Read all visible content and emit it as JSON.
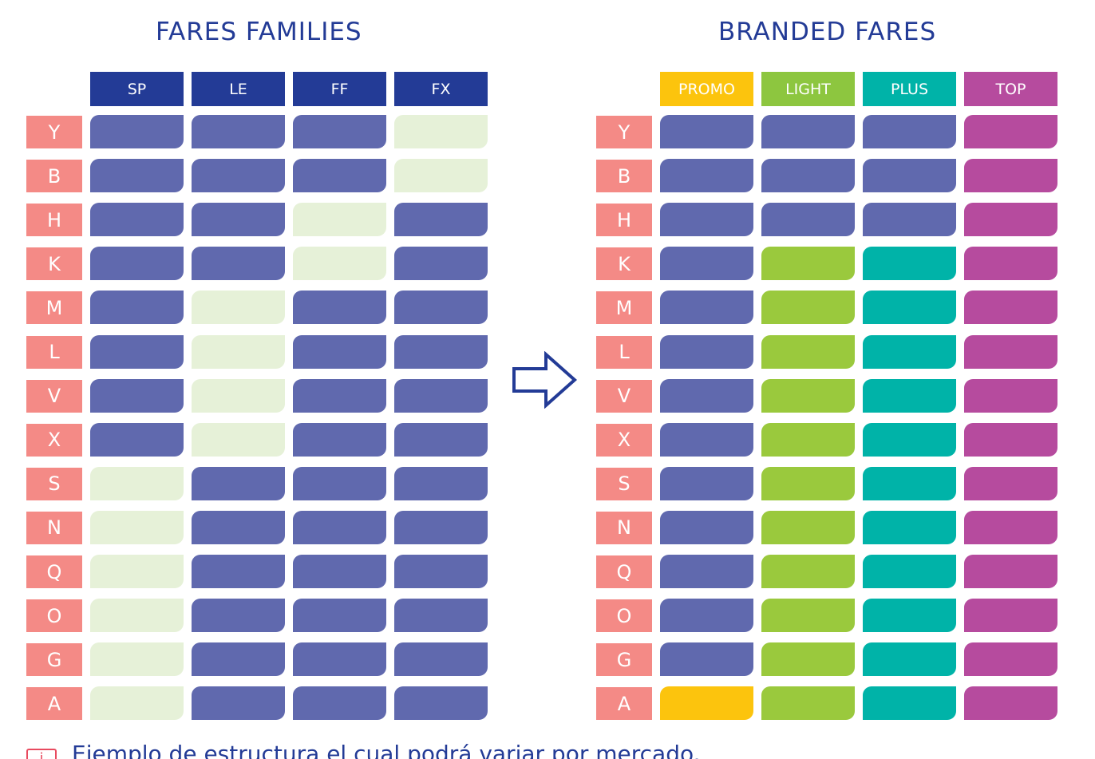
{
  "left": {
    "title": "FARES FAMILIES",
    "columns": [
      "SP",
      "LE",
      "FF",
      "FX"
    ],
    "header_color": "#233b96"
  },
  "right": {
    "title": "BRANDED FARES",
    "columns": [
      "PROMO",
      "LIGHT",
      "PLUS",
      "TOP"
    ],
    "header_colors": [
      "#fcc40d",
      "#8dc63f",
      "#00b3a8",
      "#b64b9e"
    ]
  },
  "rows": [
    "Y",
    "B",
    "H",
    "K",
    "M",
    "L",
    "V",
    "X",
    "S",
    "N",
    "Q",
    "O",
    "G",
    "A"
  ],
  "colors": {
    "filled": "#6069ae",
    "empty": "#e6f1d8",
    "row_label": "#f48a86",
    "promo": "#fcc40d",
    "light": "#9ac93d",
    "plus": "#00b3a8",
    "top": "#b64b9e"
  },
  "left_grid": [
    [
      1,
      1,
      1,
      0
    ],
    [
      1,
      1,
      1,
      0
    ],
    [
      1,
      1,
      0,
      1
    ],
    [
      1,
      1,
      0,
      1
    ],
    [
      1,
      0,
      1,
      1
    ],
    [
      1,
      0,
      1,
      1
    ],
    [
      1,
      0,
      1,
      1
    ],
    [
      1,
      0,
      1,
      1
    ],
    [
      0,
      1,
      1,
      1
    ],
    [
      0,
      1,
      1,
      1
    ],
    [
      0,
      1,
      1,
      1
    ],
    [
      0,
      1,
      1,
      1
    ],
    [
      0,
      1,
      1,
      1
    ],
    [
      0,
      1,
      1,
      1
    ]
  ],
  "right_grid": [
    [
      "filled",
      "filled",
      "filled",
      "top"
    ],
    [
      "filled",
      "filled",
      "filled",
      "top"
    ],
    [
      "filled",
      "filled",
      "filled",
      "top"
    ],
    [
      "filled",
      "light",
      "plus",
      "top"
    ],
    [
      "filled",
      "light",
      "plus",
      "top"
    ],
    [
      "filled",
      "light",
      "plus",
      "top"
    ],
    [
      "filled",
      "light",
      "plus",
      "top"
    ],
    [
      "filled",
      "light",
      "plus",
      "top"
    ],
    [
      "filled",
      "light",
      "plus",
      "top"
    ],
    [
      "filled",
      "light",
      "plus",
      "top"
    ],
    [
      "filled",
      "light",
      "plus",
      "top"
    ],
    [
      "filled",
      "light",
      "plus",
      "top"
    ],
    [
      "filled",
      "light",
      "plus",
      "top"
    ],
    [
      "promo",
      "light",
      "plus",
      "top"
    ]
  ],
  "arrow_icon": "right-arrow-outline-icon",
  "note_icon": "info-icon",
  "note": "Ejemplo de estructura el cual podrá variar por mercado."
}
